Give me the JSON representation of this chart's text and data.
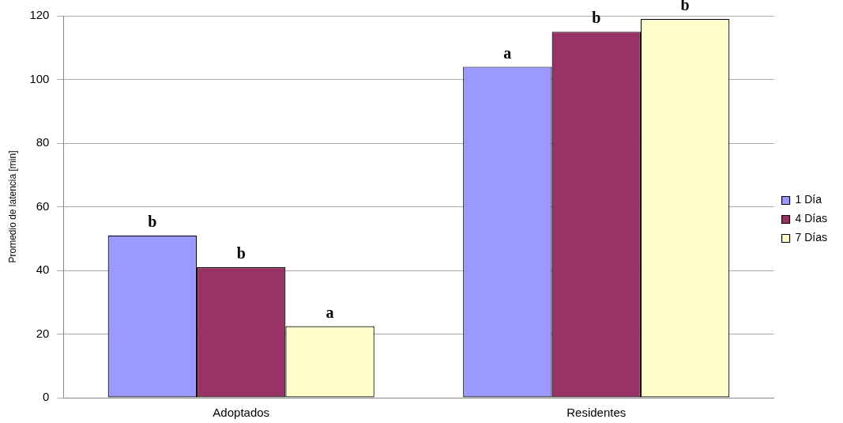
{
  "chart_data": {
    "type": "bar",
    "ylabel": "Promedio de latencia [min]",
    "categories": [
      "Adoptados",
      "Residentes"
    ],
    "series": [
      {
        "name": "1 Día",
        "color": "#9999ff",
        "values": [
          51,
          104
        ],
        "value_labels": [
          "b",
          "a"
        ]
      },
      {
        "name": "4 Días",
        "color": "#993366",
        "values": [
          41,
          115
        ],
        "value_labels": [
          "b",
          "b"
        ]
      },
      {
        "name": "7 Días",
        "color": "#ffffcc",
        "values": [
          22.5,
          119
        ],
        "value_labels": [
          "a",
          "b"
        ]
      }
    ],
    "ylim": [
      0,
      120
    ],
    "yticks": [
      0,
      20,
      40,
      60,
      80,
      100,
      120
    ],
    "grid": "y",
    "legend": "right"
  }
}
